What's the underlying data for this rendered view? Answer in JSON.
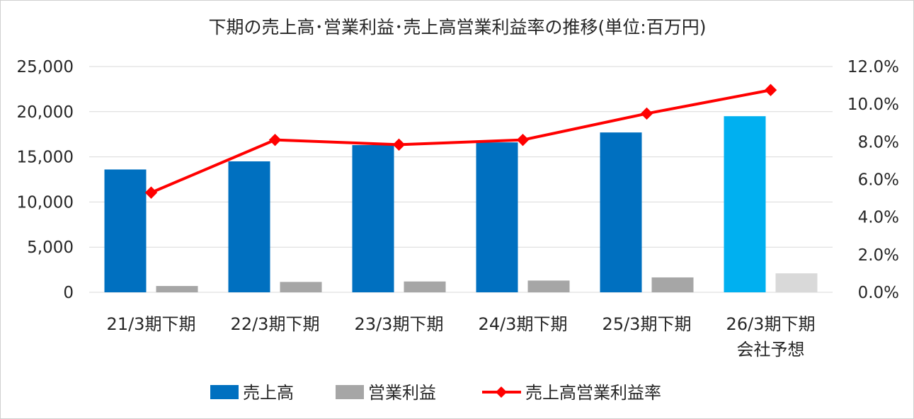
{
  "colors": {
    "sales": "#0070c0",
    "sales_forecast": "#00b0f0",
    "profit": "#a6a6a6",
    "profit_forecast": "#d9d9d9",
    "margin": "#ff0000",
    "grid": "#d9d9d9",
    "text": "#262626"
  },
  "chart_data": {
    "type": "bar",
    "title": "下期の売上高･営業利益･売上高営業利益率の推移(単位:百万円)",
    "categories": [
      [
        "21/3期下期"
      ],
      [
        "22/3期下期"
      ],
      [
        "23/3期下期"
      ],
      [
        "24/3期下期"
      ],
      [
        "25/3期下期"
      ],
      [
        "26/3期下期",
        "会社予想"
      ]
    ],
    "series": [
      {
        "name": "売上高",
        "kind": "bar",
        "axis": "left",
        "values": [
          13600,
          14500,
          16300,
          16600,
          17700,
          19500
        ]
      },
      {
        "name": "営業利益",
        "kind": "bar",
        "axis": "left",
        "values": [
          700,
          1150,
          1200,
          1300,
          1650,
          2100
        ]
      },
      {
        "name": "売上高営業利益率",
        "kind": "line",
        "axis": "right",
        "values": [
          5.3,
          8.1,
          7.85,
          8.1,
          9.5,
          10.75
        ]
      }
    ],
    "y_left": {
      "ylim": [
        0,
        25000
      ],
      "ticks": [
        "0",
        "5,000",
        "10,000",
        "15,000",
        "20,000",
        "25,000"
      ]
    },
    "y_right": {
      "ylim": [
        0,
        12
      ],
      "ticks": [
        "0.0%",
        "2.0%",
        "4.0%",
        "6.0%",
        "8.0%",
        "10.0%",
        "12.0%"
      ]
    },
    "grid": true,
    "legend": "bottom"
  }
}
